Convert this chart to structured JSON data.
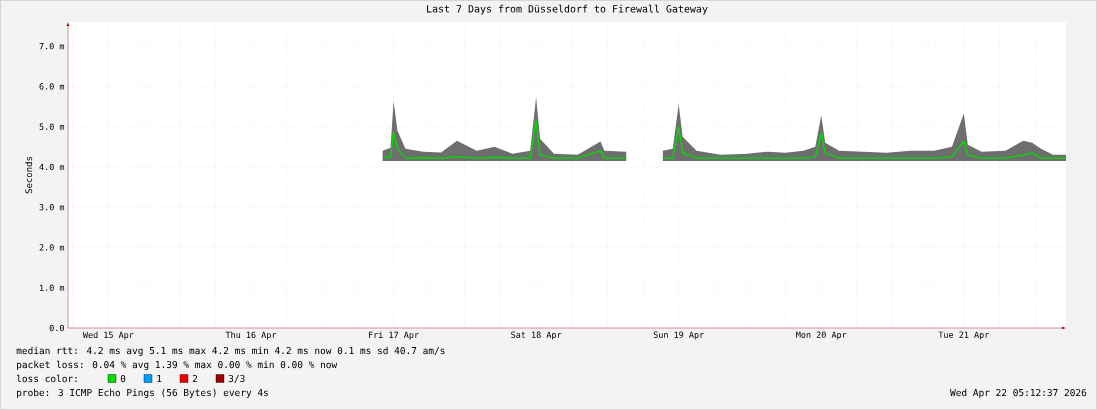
{
  "chart_data": {
    "type": "line",
    "title": "Last 7 Days from Düsseldorf to Firewall Gateway",
    "ylabel": "Seconds",
    "xlim": [
      "2026-04-15T05:12",
      "2026-04-22T05:12"
    ],
    "xticks": [
      {
        "value": "2026-04-15T06:00",
        "label": null
      },
      {
        "value": "2026-04-15T12:00",
        "label": "Wed 15 Apr"
      },
      {
        "value": "2026-04-15T18:00",
        "label": null
      },
      {
        "value": "2026-04-16T00:00",
        "label": null
      },
      {
        "value": "2026-04-16T06:00",
        "label": null
      },
      {
        "value": "2026-04-16T12:00",
        "label": "Thu 16 Apr"
      },
      {
        "value": "2026-04-16T18:00",
        "label": null
      },
      {
        "value": "2026-04-17T00:00",
        "label": null
      },
      {
        "value": "2026-04-17T06:00",
        "label": null
      },
      {
        "value": "2026-04-17T12:00",
        "label": "Fri 17 Apr"
      },
      {
        "value": "2026-04-17T18:00",
        "label": null
      },
      {
        "value": "2026-04-18T00:00",
        "label": null
      },
      {
        "value": "2026-04-18T06:00",
        "label": null
      },
      {
        "value": "2026-04-18T12:00",
        "label": "Sat 18 Apr"
      },
      {
        "value": "2026-04-18T18:00",
        "label": null
      },
      {
        "value": "2026-04-19T00:00",
        "label": null
      },
      {
        "value": "2026-04-19T06:00",
        "label": null
      },
      {
        "value": "2026-04-19T12:00",
        "label": "Sun 19 Apr"
      },
      {
        "value": "2026-04-19T18:00",
        "label": null
      },
      {
        "value": "2026-04-20T00:00",
        "label": null
      },
      {
        "value": "2026-04-20T06:00",
        "label": null
      },
      {
        "value": "2026-04-20T12:00",
        "label": "Mon 20 Apr"
      },
      {
        "value": "2026-04-20T18:00",
        "label": null
      },
      {
        "value": "2026-04-21T00:00",
        "label": null
      },
      {
        "value": "2026-04-21T06:00",
        "label": null
      },
      {
        "value": "2026-04-21T12:00",
        "label": "Tue 21 Apr"
      },
      {
        "value": "2026-04-21T18:00",
        "label": null
      },
      {
        "value": "2026-04-22T00:00",
        "label": null
      }
    ],
    "ylim": [
      0,
      7.6
    ],
    "yticks": [
      {
        "value": 0,
        "label": "0.0"
      },
      {
        "value": 1,
        "label": "1.0 m"
      },
      {
        "value": 2,
        "label": "2.0 m"
      },
      {
        "value": 3,
        "label": "3.0 m"
      },
      {
        "value": 4,
        "label": "4.0 m"
      },
      {
        "value": 5,
        "label": "5.0 m"
      },
      {
        "value": 6,
        "label": "6.0 m"
      },
      {
        "value": 7,
        "label": "7.0 m"
      }
    ],
    "grid": true,
    "series": [
      {
        "color": "#00dd00",
        "x": [
          "2026-04-17T10:10",
          "2026-04-17T11:30",
          "2026-04-17T12:00",
          "2026-04-17T12:40",
          "2026-04-17T14:00",
          "2026-04-17T17:00",
          "2026-04-17T20:00",
          "2026-04-17T22:40",
          "2026-04-18T02:00",
          "2026-04-18T05:00",
          "2026-04-18T08:00",
          "2026-04-18T11:00",
          "2026-04-18T12:00",
          "2026-04-18T12:40",
          "2026-04-18T15:00",
          "2026-04-18T19:00",
          "2026-04-18T22:50",
          "2026-04-18T23:30",
          "2026-04-19T03:10",
          "2026-04-19T06:00",
          "2026-04-19T09:20",
          "2026-04-19T11:00",
          "2026-04-19T12:00",
          "2026-04-19T12:40",
          "2026-04-19T15:00",
          "2026-04-19T19:00",
          "2026-04-19T23:00",
          "2026-04-20T03:00",
          "2026-04-20T06:00",
          "2026-04-20T09:00",
          "2026-04-20T11:00",
          "2026-04-20T12:00",
          "2026-04-20T12:40",
          "2026-04-20T15:00",
          "2026-04-20T19:00",
          "2026-04-20T23:00",
          "2026-04-21T03:00",
          "2026-04-21T07:00",
          "2026-04-21T10:00",
          "2026-04-21T12:00",
          "2026-04-21T12:40",
          "2026-04-21T15:00",
          "2026-04-21T19:00",
          "2026-04-21T22:00",
          "2026-04-21T23:30",
          "2026-04-22T01:00",
          "2026-04-22T03:00",
          "2026-04-22T05:12"
        ],
        "values": [
          4.22,
          4.25,
          4.86,
          4.45,
          4.22,
          4.23,
          4.22,
          4.25,
          4.22,
          4.24,
          4.22,
          4.22,
          5.16,
          4.3,
          4.22,
          4.22,
          4.4,
          4.22,
          4.22,
          null,
          4.22,
          4.22,
          4.99,
          4.35,
          4.22,
          4.22,
          4.22,
          4.22,
          4.22,
          4.22,
          4.25,
          4.84,
          4.35,
          4.22,
          4.22,
          4.22,
          4.22,
          4.22,
          4.25,
          4.64,
          4.3,
          4.22,
          4.22,
          4.3,
          4.35,
          4.22,
          4.22,
          4.22
        ],
        "lower": [
          4.15,
          4.15,
          4.15,
          4.15,
          4.15,
          4.15,
          4.15,
          4.15,
          4.15,
          4.15,
          4.15,
          4.15,
          4.15,
          4.15,
          4.15,
          4.15,
          4.15,
          4.15,
          4.15,
          null,
          4.15,
          4.15,
          4.15,
          4.15,
          4.15,
          4.15,
          4.15,
          4.15,
          4.15,
          4.15,
          4.15,
          4.15,
          4.15,
          4.15,
          4.15,
          4.15,
          4.15,
          4.15,
          4.15,
          4.15,
          4.15,
          4.15,
          4.15,
          4.15,
          4.15,
          4.15,
          4.15,
          4.15
        ],
        "upper": [
          4.4,
          4.48,
          5.63,
          4.9,
          4.45,
          4.38,
          4.36,
          4.65,
          4.4,
          4.5,
          4.33,
          4.4,
          5.73,
          4.7,
          4.33,
          4.3,
          4.63,
          4.4,
          4.38,
          null,
          4.4,
          4.45,
          5.56,
          4.75,
          4.4,
          4.3,
          4.32,
          4.38,
          4.35,
          4.4,
          4.5,
          5.28,
          4.6,
          4.4,
          4.38,
          4.35,
          4.4,
          4.4,
          4.5,
          5.33,
          4.55,
          4.38,
          4.4,
          4.65,
          4.6,
          4.45,
          4.3,
          4.3
        ]
      }
    ],
    "annotations": [
      "median rtt:  4.2 ms avg  5.1 ms max  4.2 ms min  4.2 ms now  0.1 ms sd  40.7   am/s",
      "packet loss: 0.04 % avg  1.39 % max  0.00 % min  0.00 % now",
      "loss color:",
      "0",
      "1",
      "2",
      "3/3",
      "probe:       3 ICMP Echo Pings (56 Bytes) every 4s",
      "Wed Apr 22 05:12:37 2026"
    ]
  }
}
